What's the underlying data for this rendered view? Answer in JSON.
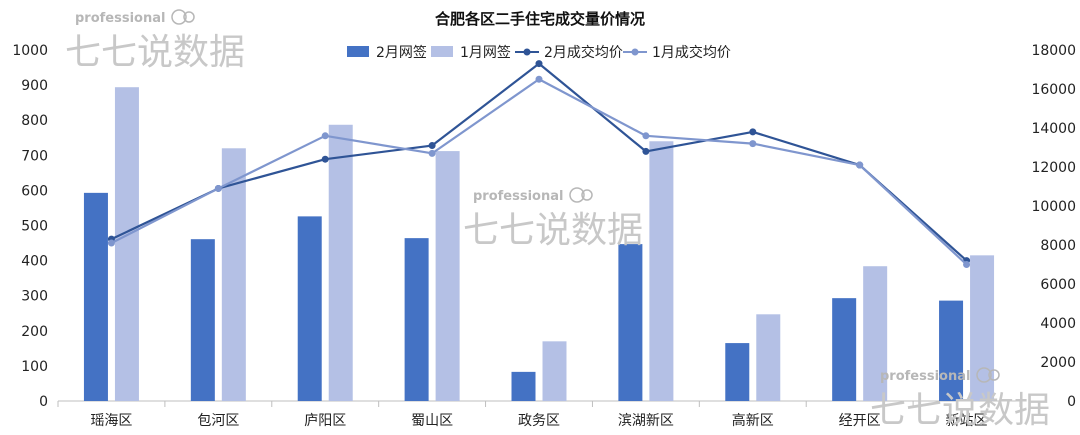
{
  "watermark": {
    "word": "professional",
    "chinese": "七七说数据"
  },
  "chart_data": {
    "type": "bar",
    "title": "合肥各区二手住宅成交量价情况",
    "categories": [
      "瑶海区",
      "包河区",
      "庐阳区",
      "蜀山区",
      "政务区",
      "滨湖新区",
      "高新区",
      "经开区",
      "新站区"
    ],
    "series": [
      {
        "name": "2月网签",
        "type": "bar",
        "axis": "left",
        "color": "#4472C4",
        "values": [
          593,
          461,
          526,
          464,
          83,
          447,
          165,
          293,
          286
        ]
      },
      {
        "name": "1月网签",
        "type": "bar",
        "axis": "left",
        "color": "#B4C0E5",
        "values": [
          894,
          720,
          787,
          712,
          170,
          740,
          247,
          384,
          415
        ]
      },
      {
        "name": "2月成交均价",
        "type": "line",
        "axis": "right",
        "color": "#2F5496",
        "values": [
          8300,
          10900,
          12400,
          13100,
          17300,
          12800,
          13800,
          12100,
          7200
        ]
      },
      {
        "name": "1月成交均价",
        "type": "line",
        "axis": "right",
        "color": "#7F96CE",
        "values": [
          8100,
          10900,
          13600,
          12700,
          16500,
          13600,
          13200,
          12100,
          7000
        ]
      }
    ],
    "y_left": {
      "min": 0,
      "max": 1000,
      "ticks": [
        0,
        100,
        200,
        300,
        400,
        500,
        600,
        700,
        800,
        900,
        1000
      ]
    },
    "y_right": {
      "min": 0,
      "max": 18000,
      "ticks": [
        0,
        2000,
        4000,
        6000,
        8000,
        10000,
        12000,
        14000,
        16000,
        18000
      ]
    },
    "legend_position": "top-center",
    "grid": false
  }
}
